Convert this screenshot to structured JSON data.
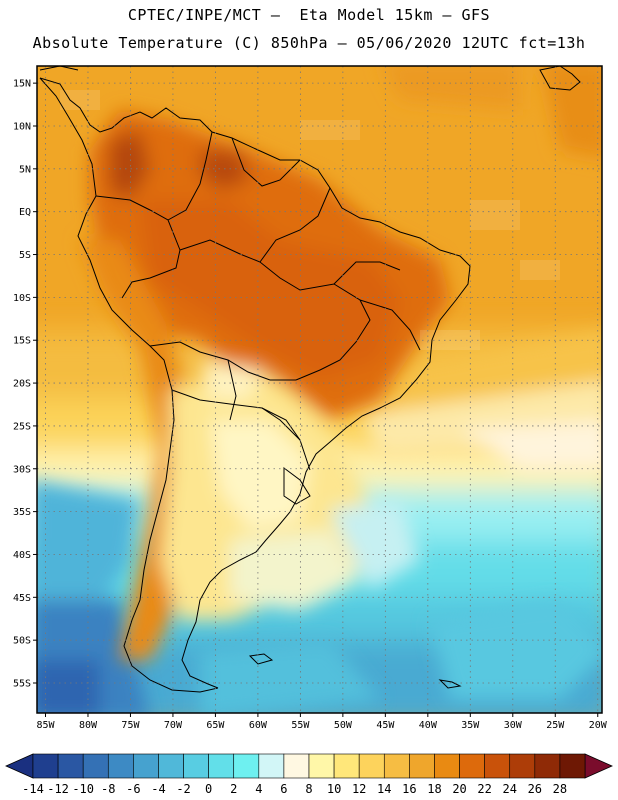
{
  "header": {
    "line1": "CPTEC/INPE/MCT –  Eta Model 15km – GFS",
    "line2": "Absolute Temperature (C) 850hPa – 05/06/2020 12UTC fct=13h"
  },
  "map": {
    "lat_labels": [
      "15N",
      "10N",
      "5N",
      "EQ",
      "5S",
      "10S",
      "15S",
      "20S",
      "25S",
      "30S",
      "35S",
      "40S",
      "45S",
      "50S",
      "55S"
    ],
    "lat_values": [
      15,
      10,
      5,
      0,
      -5,
      -10,
      -15,
      -20,
      -25,
      -30,
      -35,
      -40,
      -45,
      -50,
      -55
    ],
    "lon_labels": [
      "85W",
      "80W",
      "75W",
      "70W",
      "65W",
      "60W",
      "55W",
      "50W",
      "45W",
      "40W",
      "35W",
      "30W",
      "25W",
      "20W"
    ],
    "lon_values": [
      -85,
      -80,
      -75,
      -70,
      -65,
      -60,
      -55,
      -50,
      -45,
      -40,
      -35,
      -30,
      -25,
      -20
    ],
    "extent": {
      "lon_min": -86,
      "lon_max": -19.5,
      "lat_min": -58.5,
      "lat_max": 17
    }
  },
  "colorbar": {
    "labels": [
      "-14",
      "-12",
      "-10",
      "-8",
      "-6",
      "-4",
      "-2",
      "0",
      "2",
      "4",
      "6",
      "8",
      "10",
      "12",
      "14",
      "16",
      "18",
      "20",
      "22",
      "24",
      "26",
      "28"
    ],
    "colors": [
      "#1f3f8f",
      "#2a57a3",
      "#3471b5",
      "#3d8ac4",
      "#46a2cf",
      "#50b8d9",
      "#58cde2",
      "#62dfe9",
      "#6ef0f0",
      "#d2f6f7",
      "#fff8e2",
      "#fff7a8",
      "#ffe77a",
      "#fdd35c",
      "#f6bd43",
      "#efa62c",
      "#e98a12",
      "#dd6a0c",
      "#c9520a",
      "#ad3d08",
      "#8f2a06",
      "#6e1804"
    ],
    "under_color": "#1a3080",
    "over_color": "#7a0c2c"
  }
}
